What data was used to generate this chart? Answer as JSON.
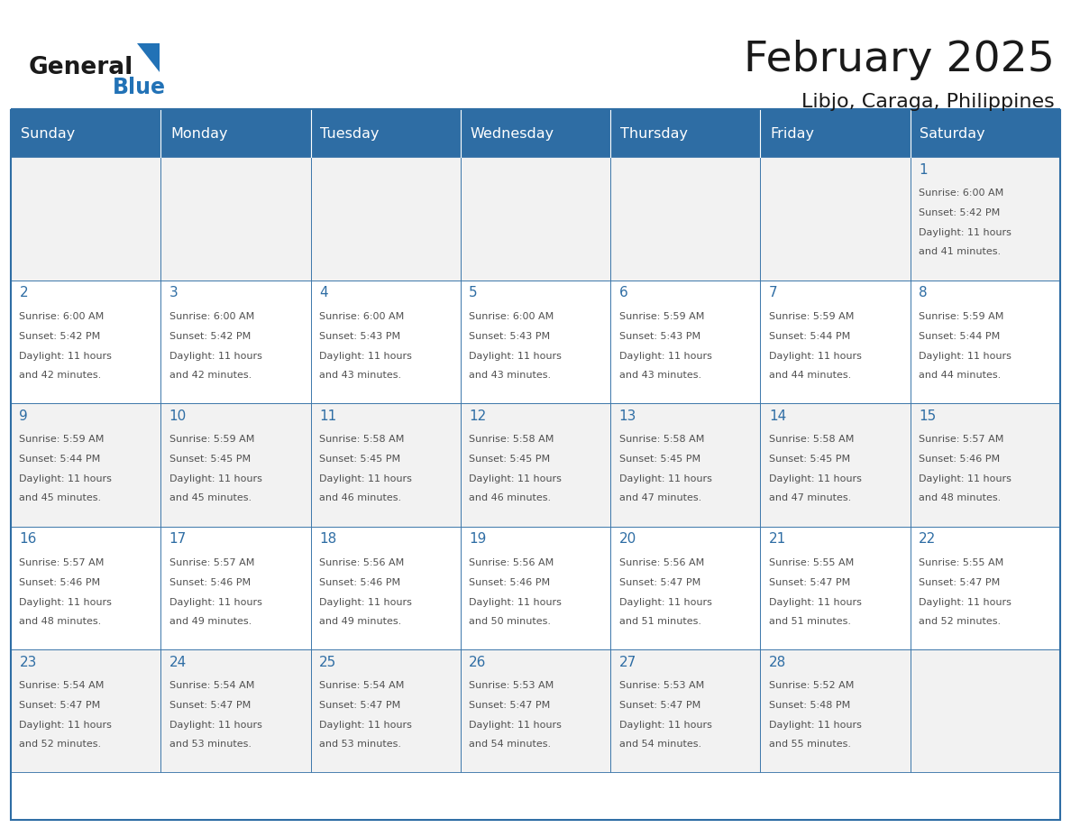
{
  "title": "February 2025",
  "subtitle": "Libjo, Caraga, Philippines",
  "days_of_week": [
    "Sunday",
    "Monday",
    "Tuesday",
    "Wednesday",
    "Thursday",
    "Friday",
    "Saturday"
  ],
  "header_bg": "#2E6DA4",
  "header_text": "#FFFFFF",
  "cell_bg_even": "#F2F2F2",
  "cell_bg_odd": "#FFFFFF",
  "border_color": "#2E6DA4",
  "day_number_color": "#2E6DA4",
  "text_color": "#505050",
  "logo_general_color": "#1A1A1A",
  "logo_blue_color": "#2272B6",
  "calendar_data": [
    [
      null,
      null,
      null,
      null,
      null,
      null,
      {
        "day": 1,
        "sunrise": "6:00 AM",
        "sunset": "5:42 PM",
        "daylight": "11 hours and 41 minutes."
      }
    ],
    [
      {
        "day": 2,
        "sunrise": "6:00 AM",
        "sunset": "5:42 PM",
        "daylight": "11 hours and 42 minutes."
      },
      {
        "day": 3,
        "sunrise": "6:00 AM",
        "sunset": "5:42 PM",
        "daylight": "11 hours and 42 minutes."
      },
      {
        "day": 4,
        "sunrise": "6:00 AM",
        "sunset": "5:43 PM",
        "daylight": "11 hours and 43 minutes."
      },
      {
        "day": 5,
        "sunrise": "6:00 AM",
        "sunset": "5:43 PM",
        "daylight": "11 hours and 43 minutes."
      },
      {
        "day": 6,
        "sunrise": "5:59 AM",
        "sunset": "5:43 PM",
        "daylight": "11 hours and 43 minutes."
      },
      {
        "day": 7,
        "sunrise": "5:59 AM",
        "sunset": "5:44 PM",
        "daylight": "11 hours and 44 minutes."
      },
      {
        "day": 8,
        "sunrise": "5:59 AM",
        "sunset": "5:44 PM",
        "daylight": "11 hours and 44 minutes."
      }
    ],
    [
      {
        "day": 9,
        "sunrise": "5:59 AM",
        "sunset": "5:44 PM",
        "daylight": "11 hours and 45 minutes."
      },
      {
        "day": 10,
        "sunrise": "5:59 AM",
        "sunset": "5:45 PM",
        "daylight": "11 hours and 45 minutes."
      },
      {
        "day": 11,
        "sunrise": "5:58 AM",
        "sunset": "5:45 PM",
        "daylight": "11 hours and 46 minutes."
      },
      {
        "day": 12,
        "sunrise": "5:58 AM",
        "sunset": "5:45 PM",
        "daylight": "11 hours and 46 minutes."
      },
      {
        "day": 13,
        "sunrise": "5:58 AM",
        "sunset": "5:45 PM",
        "daylight": "11 hours and 47 minutes."
      },
      {
        "day": 14,
        "sunrise": "5:58 AM",
        "sunset": "5:45 PM",
        "daylight": "11 hours and 47 minutes."
      },
      {
        "day": 15,
        "sunrise": "5:57 AM",
        "sunset": "5:46 PM",
        "daylight": "11 hours and 48 minutes."
      }
    ],
    [
      {
        "day": 16,
        "sunrise": "5:57 AM",
        "sunset": "5:46 PM",
        "daylight": "11 hours and 48 minutes."
      },
      {
        "day": 17,
        "sunrise": "5:57 AM",
        "sunset": "5:46 PM",
        "daylight": "11 hours and 49 minutes."
      },
      {
        "day": 18,
        "sunrise": "5:56 AM",
        "sunset": "5:46 PM",
        "daylight": "11 hours and 49 minutes."
      },
      {
        "day": 19,
        "sunrise": "5:56 AM",
        "sunset": "5:46 PM",
        "daylight": "11 hours and 50 minutes."
      },
      {
        "day": 20,
        "sunrise": "5:56 AM",
        "sunset": "5:47 PM",
        "daylight": "11 hours and 51 minutes."
      },
      {
        "day": 21,
        "sunrise": "5:55 AM",
        "sunset": "5:47 PM",
        "daylight": "11 hours and 51 minutes."
      },
      {
        "day": 22,
        "sunrise": "5:55 AM",
        "sunset": "5:47 PM",
        "daylight": "11 hours and 52 minutes."
      }
    ],
    [
      {
        "day": 23,
        "sunrise": "5:54 AM",
        "sunset": "5:47 PM",
        "daylight": "11 hours and 52 minutes."
      },
      {
        "day": 24,
        "sunrise": "5:54 AM",
        "sunset": "5:47 PM",
        "daylight": "11 hours and 53 minutes."
      },
      {
        "day": 25,
        "sunrise": "5:54 AM",
        "sunset": "5:47 PM",
        "daylight": "11 hours and 53 minutes."
      },
      {
        "day": 26,
        "sunrise": "5:53 AM",
        "sunset": "5:47 PM",
        "daylight": "11 hours and 54 minutes."
      },
      {
        "day": 27,
        "sunrise": "5:53 AM",
        "sunset": "5:47 PM",
        "daylight": "11 hours and 54 minutes."
      },
      {
        "day": 28,
        "sunrise": "5:52 AM",
        "sunset": "5:48 PM",
        "daylight": "11 hours and 55 minutes."
      },
      null
    ]
  ]
}
